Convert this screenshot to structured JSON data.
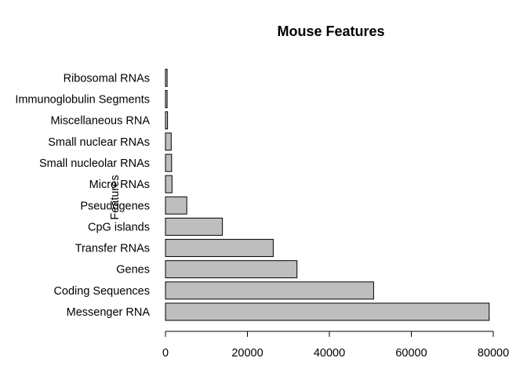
{
  "chart_data": {
    "type": "bar",
    "orientation": "horizontal",
    "title": "Mouse Features",
    "ylabel": "Features",
    "xlabel": "",
    "categories": [
      "Messenger RNA",
      "Coding Sequences",
      "Genes",
      "Transfer RNAs",
      "CpG islands",
      "Pseudogenes",
      "Micro RNAs",
      "Small nucleolar RNAs",
      "Small nuclear RNAs",
      "Miscellaneous RNA",
      "Immunoglobulin Segments",
      "Ribosomal RNAs"
    ],
    "values": [
      79000,
      50800,
      32100,
      26300,
      13900,
      5200,
      1600,
      1500,
      1400,
      500,
      400,
      400
    ],
    "xlim": [
      0,
      80000
    ],
    "xticks": [
      0,
      20000,
      40000,
      60000,
      80000
    ],
    "grid": false,
    "bar_color": "#bebebe"
  }
}
